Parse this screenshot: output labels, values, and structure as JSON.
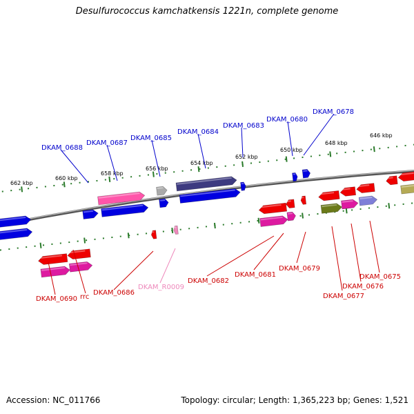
{
  "title": "Desulfurococcus kamchatkensis 1221n, complete genome",
  "footer": {
    "accession": "Accession: NC_011766",
    "stats": "Topology: circular; Length: 1,365,223 bp; Genes: 1,521"
  },
  "colors": {
    "backbone": "#888888",
    "scale_ticks": "#2a7a2a",
    "upper_label": "#0000cc",
    "lower_label": "#cc0000",
    "rna_label": "#ee88bb",
    "gene_blue": "#0000e0",
    "gene_red": "#ee0000",
    "protein_magenta": "#dd1aa0",
    "protein_pink": "#ff55aa",
    "protein_navy": "#3d3a80",
    "protein_olive": "#6b7a1a",
    "protein_periwinkle": "#7f7fd8",
    "protein_khaki": "#b5aa55",
    "gene_gray": "#aaaaaa"
  },
  "scale": {
    "upper_labels": [
      "662 kbp",
      "660 kbp",
      "658 kbp",
      "656 kbp",
      "654 kbp",
      "652 kbp",
      "650 kbp",
      "648 kbp",
      "646 kbp"
    ]
  },
  "upper_gene_labels": [
    "DKAM_0688",
    "DKAM_0687",
    "DKAM_0685",
    "DKAM_0684",
    "DKAM_0683",
    "DKAM_0680",
    "DKAM_0678"
  ],
  "lower_gene_labels": [
    "DKAM_0690",
    "rrc",
    "DKAM_0686",
    "DKAM_R0009",
    "DKAM_0682",
    "DKAM_0681",
    "DKAM_0679",
    "DKAM_0677",
    "DKAM_0676",
    "DKAM_0675"
  ]
}
